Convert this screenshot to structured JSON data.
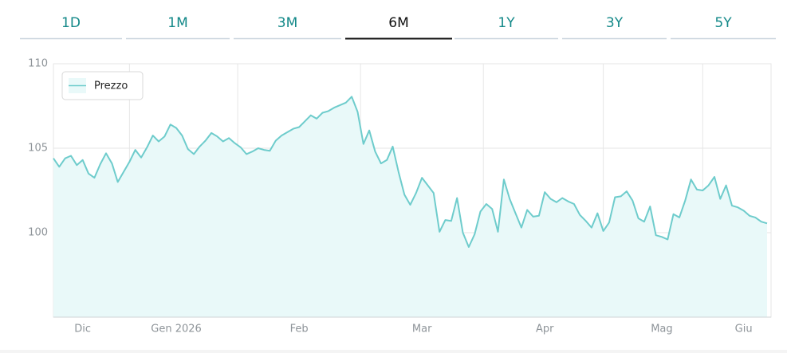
{
  "tabs": {
    "labels": [
      "1D",
      "1M",
      "3M",
      "6M",
      "1Y",
      "3Y",
      "5Y"
    ],
    "selected": 3
  },
  "chart_data": {
    "type": "area",
    "categories": [
      null,
      null,
      null,
      null,
      null,
      "Dic",
      null,
      null,
      null,
      null,
      null,
      null,
      null,
      null,
      null,
      null,
      null,
      null,
      null,
      null,
      null,
      "Gen 2026",
      null,
      null,
      null,
      null,
      null,
      null,
      null,
      null,
      null,
      null,
      null,
      null,
      null,
      null,
      null,
      null,
      null,
      null,
      null,
      null,
      "Feb",
      null,
      null,
      null,
      null,
      null,
      null,
      null,
      null,
      null,
      null,
      null,
      null,
      null,
      null,
      null,
      null,
      null,
      null,
      null,
      null,
      "Mar",
      null,
      null,
      null,
      null,
      null,
      null,
      null,
      null,
      null,
      null,
      null,
      null,
      null,
      null,
      null,
      null,
      null,
      null,
      null,
      null,
      "Apr",
      null,
      null,
      null,
      null,
      null,
      null,
      null,
      null,
      null,
      null,
      null,
      null,
      null,
      null,
      null,
      null,
      null,
      null,
      null,
      "Mag",
      null,
      null,
      null,
      null,
      null,
      null,
      null,
      null,
      null,
      null,
      null,
      null,
      null,
      "Giu",
      null,
      null,
      null,
      null
    ],
    "series": [
      {
        "name": "Prezzo",
        "color": "#6ecccc",
        "fill": "#e9f9f9",
        "values": [
          104.4,
          103.9,
          104.4,
          104.55,
          104.0,
          104.3,
          103.5,
          103.25,
          104.05,
          104.7,
          104.1,
          103.0,
          103.6,
          104.2,
          104.9,
          104.45,
          105.05,
          105.75,
          105.4,
          105.7,
          106.4,
          106.2,
          105.75,
          104.95,
          104.65,
          105.1,
          105.45,
          105.9,
          105.7,
          105.4,
          105.6,
          105.3,
          105.05,
          104.65,
          104.8,
          105.0,
          104.9,
          104.85,
          105.45,
          105.75,
          105.95,
          106.15,
          106.25,
          106.6,
          106.95,
          106.75,
          107.1,
          107.2,
          107.4,
          107.55,
          107.7,
          108.05,
          107.15,
          105.25,
          106.05,
          104.8,
          104.1,
          104.3,
          105.1,
          103.6,
          102.25,
          101.65,
          102.35,
          103.25,
          102.8,
          102.35,
          100.05,
          100.75,
          100.7,
          102.05,
          100.0,
          99.15,
          99.9,
          101.25,
          101.7,
          101.4,
          100.05,
          103.15,
          102.0,
          101.15,
          100.3,
          101.35,
          100.95,
          101.0,
          102.4,
          102.0,
          101.8,
          102.05,
          101.85,
          101.7,
          101.05,
          100.7,
          100.3,
          101.15,
          100.1,
          100.6,
          102.1,
          102.15,
          102.45,
          101.9,
          100.85,
          100.65,
          101.55,
          99.85,
          99.75,
          99.6,
          101.1,
          100.9,
          101.9,
          103.15,
          102.55,
          102.5,
          102.8,
          103.3,
          102.0,
          102.8,
          101.6,
          101.5,
          101.3,
          101.0,
          100.9,
          100.65,
          100.55
        ]
      }
    ],
    "ylim": [
      95,
      110
    ],
    "yticks": [
      100,
      105,
      110
    ],
    "grid": true,
    "legend": "top-left"
  }
}
